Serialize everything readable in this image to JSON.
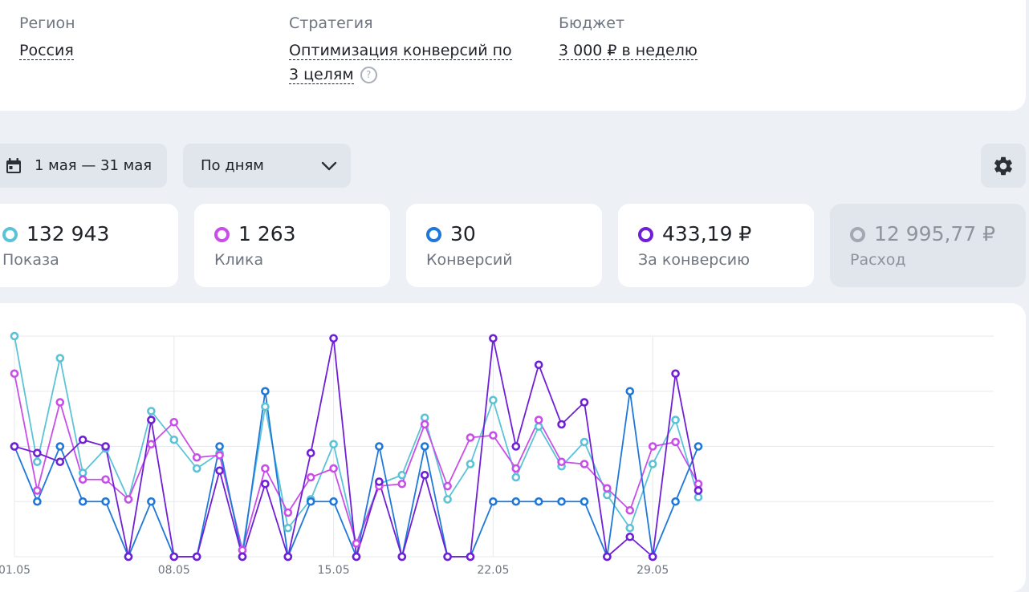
{
  "campaign": {
    "region": {
      "label": "Регион",
      "value": "Россия"
    },
    "strategy": {
      "label": "Стратегия",
      "value": "Оптимизация конверсий по 3 целям"
    },
    "budget": {
      "label": "Бюджет",
      "value": "3 000 ₽ в неделю"
    }
  },
  "filters": {
    "date_range": "1 мая — 31 мая",
    "grouping": "По дням"
  },
  "metrics": [
    {
      "value": "132 943",
      "label": "Показа",
      "color": "#5cc3d6",
      "active": true
    },
    {
      "value": "1 263",
      "label": "Клика",
      "color": "#c94ee8",
      "active": true
    },
    {
      "value": "30",
      "label": "Конверсий",
      "color": "#1f78d8",
      "active": true
    },
    {
      "value": "433,19 ₽",
      "label": "За конверсию",
      "color": "#6f1fd6",
      "active": true
    },
    {
      "value": "12 995,77 ₽",
      "label": "Расход",
      "color": "#a3a9b2",
      "active": false
    }
  ],
  "chart_data": {
    "type": "line",
    "normalized": true,
    "ylim": [
      0,
      100
    ],
    "grid": true,
    "x": [
      "01.05",
      "02.05",
      "03.05",
      "04.05",
      "05.05",
      "06.05",
      "07.05",
      "08.05",
      "09.05",
      "10.05",
      "11.05",
      "12.05",
      "13.05",
      "14.05",
      "15.05",
      "16.05",
      "17.05",
      "18.05",
      "19.05",
      "20.05",
      "21.05",
      "22.05",
      "23.05",
      "24.05",
      "25.05",
      "26.05",
      "27.05",
      "28.05",
      "29.05",
      "30.05",
      "31.05"
    ],
    "x_tick_labels": [
      "01.05",
      "08.05",
      "15.05",
      "22.05",
      "29.05"
    ],
    "series": [
      {
        "name": "Показа",
        "color": "#5cc3d6",
        "values": [
          100,
          43,
          90,
          38,
          49,
          26,
          66,
          53,
          40,
          47,
          3,
          68,
          13,
          26,
          51,
          6,
          33,
          37,
          63,
          26,
          42,
          71,
          36,
          59,
          41,
          52,
          28,
          13,
          42,
          62,
          27
        ]
      },
      {
        "name": "Клика",
        "color": "#c94ee8",
        "values": [
          83,
          30,
          70,
          35,
          35,
          26,
          51,
          61,
          45,
          46,
          3,
          40,
          20,
          36,
          40,
          6,
          32,
          33,
          60,
          32,
          54,
          55,
          40,
          62,
          43,
          42,
          31,
          21,
          50,
          52,
          33
        ]
      },
      {
        "name": "Конверсий",
        "color": "#1f78d8",
        "values": [
          50,
          25,
          50,
          25,
          25,
          0,
          25,
          0,
          0,
          50,
          0,
          75,
          0,
          25,
          25,
          0,
          50,
          0,
          50,
          0,
          0,
          25,
          25,
          25,
          25,
          25,
          0,
          75,
          0,
          25,
          50
        ]
      },
      {
        "name": "За конверсию",
        "color": "#6f1fd6",
        "values": [
          50,
          47,
          43,
          53,
          50,
          0,
          62,
          0,
          0,
          39,
          0,
          33,
          0,
          47,
          99,
          0,
          34,
          0,
          37,
          0,
          0,
          99,
          50,
          87,
          60,
          70,
          0,
          9,
          0,
          83,
          30
        ]
      }
    ]
  }
}
